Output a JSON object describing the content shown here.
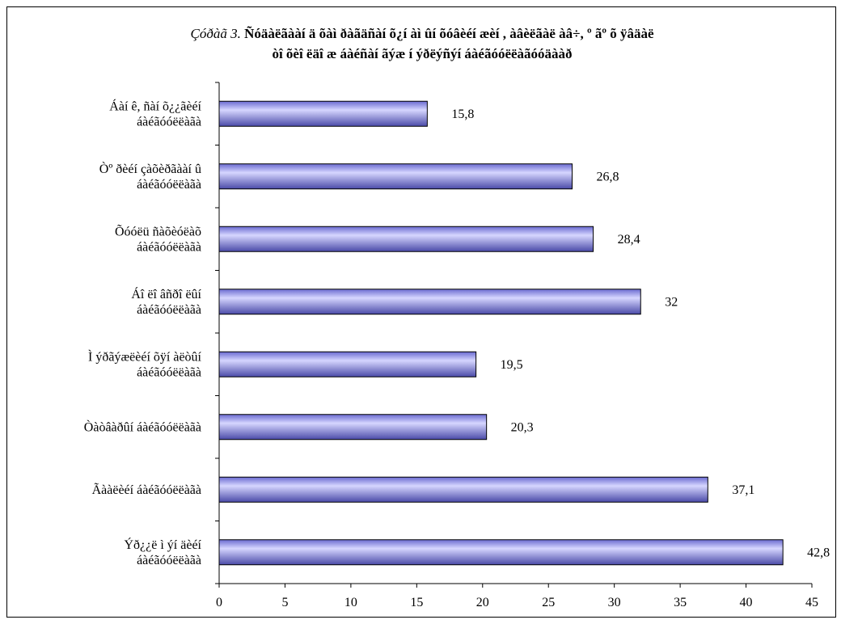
{
  "chart_data": {
    "type": "bar",
    "orientation": "horizontal",
    "title_prefix": "Çóðàã 3.",
    "title_lines": [
      "Ñóäàëãààí ä õàì ðàãäñàí õ¿í àì ûí õóâèéí æèí , àâèëãàë àâ÷, º ãº õ ÿâäàë",
      "òî õèî ëäî æ áàéñàí ãýæ í ýðëýñýí áàéãóóëëàãóóäààð"
    ],
    "categories": [
      [
        "Áàí ê, ñàí õ¿¿ãèéí",
        "áàéãóóëëàãà"
      ],
      [
        "Òº ðèéí çàõèðãààí û",
        "áàéãóóëëàãà"
      ],
      [
        "Õóóëü ñàõèóëàõ",
        "áàéãóóëëàãà"
      ],
      [
        "Áî ëî âñðî ëûí",
        "áàéãóóëëàãà"
      ],
      [
        "Ì ýðãýæëèéí õÿí àëòûí",
        "áàéãóóëëàãà"
      ],
      [
        "Òàòâàðûí áàéãóóëëàãà"
      ],
      [
        "Ãààëèéí áàéãóóëëàãà"
      ],
      [
        "Ýð¿¿ë ì ýí äèéí",
        "áàéãóóëëàãà"
      ]
    ],
    "values": [
      15.8,
      26.8,
      28.4,
      32,
      19.5,
      20.3,
      37.1,
      42.8
    ],
    "value_labels": [
      "15,8",
      "26,8",
      "28,4",
      "32",
      "19,5",
      "20,3",
      "37,1",
      "42,8"
    ],
    "xlim": [
      0,
      45
    ],
    "xticks": [
      0,
      5,
      10,
      15,
      20,
      25,
      30,
      35,
      40,
      45
    ],
    "xlabel": "",
    "ylabel": "",
    "grid": false,
    "legend": "none",
    "colors": {
      "bar_light": "#d6d6ff",
      "bar_mid": "#9999ee",
      "bar_dark": "#4a4aa8",
      "outline": "#000000"
    }
  }
}
